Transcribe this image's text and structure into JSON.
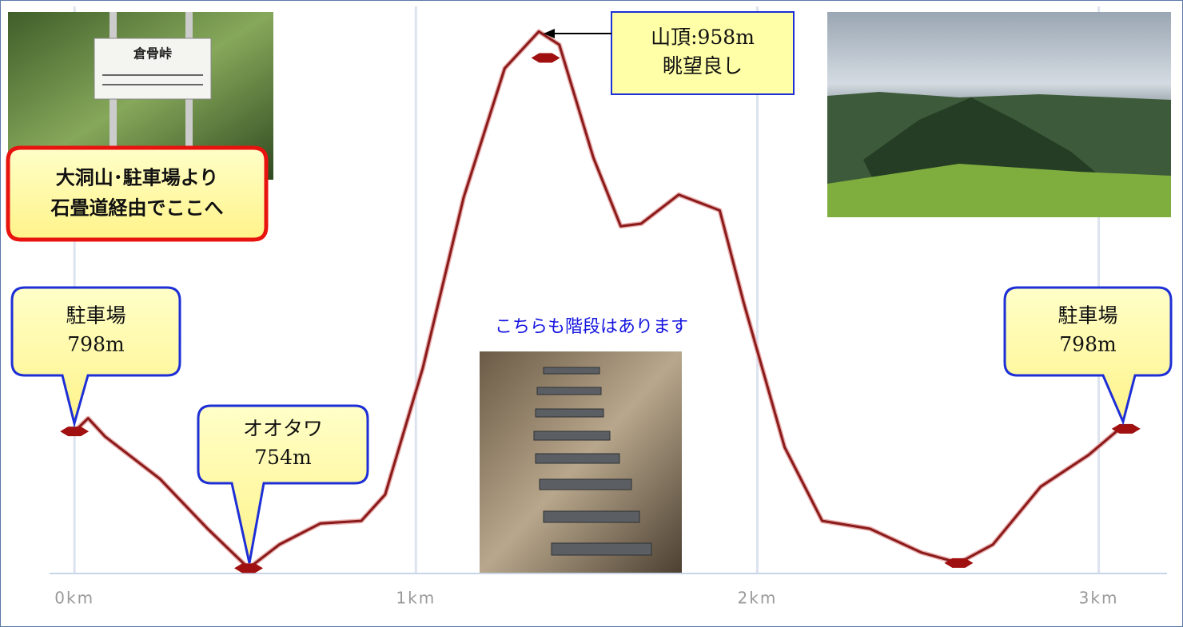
{
  "chart_data": {
    "type": "line",
    "x": [
      0.0,
      0.04,
      0.09,
      0.25,
      0.39,
      0.51,
      0.6,
      0.72,
      0.84,
      0.91,
      1.02,
      1.14,
      1.26,
      1.36,
      1.42,
      1.52,
      1.6,
      1.66,
      1.77,
      1.89,
      1.96,
      2.08,
      2.19,
      2.33,
      2.48,
      2.59,
      2.69,
      2.83,
      2.97,
      3.07
    ],
    "series": [
      {
        "color": "#8b1a1a",
        "values": [
          806,
          811,
          804,
          788,
          769,
          754,
          763,
          771,
          772,
          782,
          830,
          895,
          944,
          958,
          953,
          910,
          884,
          885,
          896,
          890,
          855,
          800,
          772,
          769,
          760,
          756,
          763,
          785,
          797,
          808
        ]
      }
    ],
    "waypoints": {
      "color": "#a01010",
      "x": [
        0.0,
        0.51,
        1.38,
        2.59,
        3.08
      ],
      "values": [
        806,
        754,
        948,
        756,
        807
      ]
    },
    "xlim": [
      -0.073,
      3.2
    ],
    "ylim": [
      752,
      970
    ],
    "xticks": [
      {
        "value": 0,
        "label": "0km"
      },
      {
        "value": 1,
        "label": "1km"
      },
      {
        "value": 2,
        "label": "2km"
      },
      {
        "value": 3,
        "label": "3km"
      }
    ],
    "grid": true,
    "annotations": [
      {
        "text": [
          "駐車場",
          "798m"
        ]
      },
      {
        "text": [
          "オオタワ",
          "754m"
        ]
      },
      {
        "text": [
          "山頂:958m",
          "眺望良し"
        ]
      },
      {
        "text": [
          "駐車場",
          "798m"
        ]
      },
      {
        "text": [
          "大洞山･駐車場より",
          "石畳道経由でここへ"
        ]
      },
      {
        "text": [
          "こちらも階段はあります"
        ]
      }
    ],
    "photos": [
      {
        "sign": "倉骨峠"
      }
    ]
  }
}
